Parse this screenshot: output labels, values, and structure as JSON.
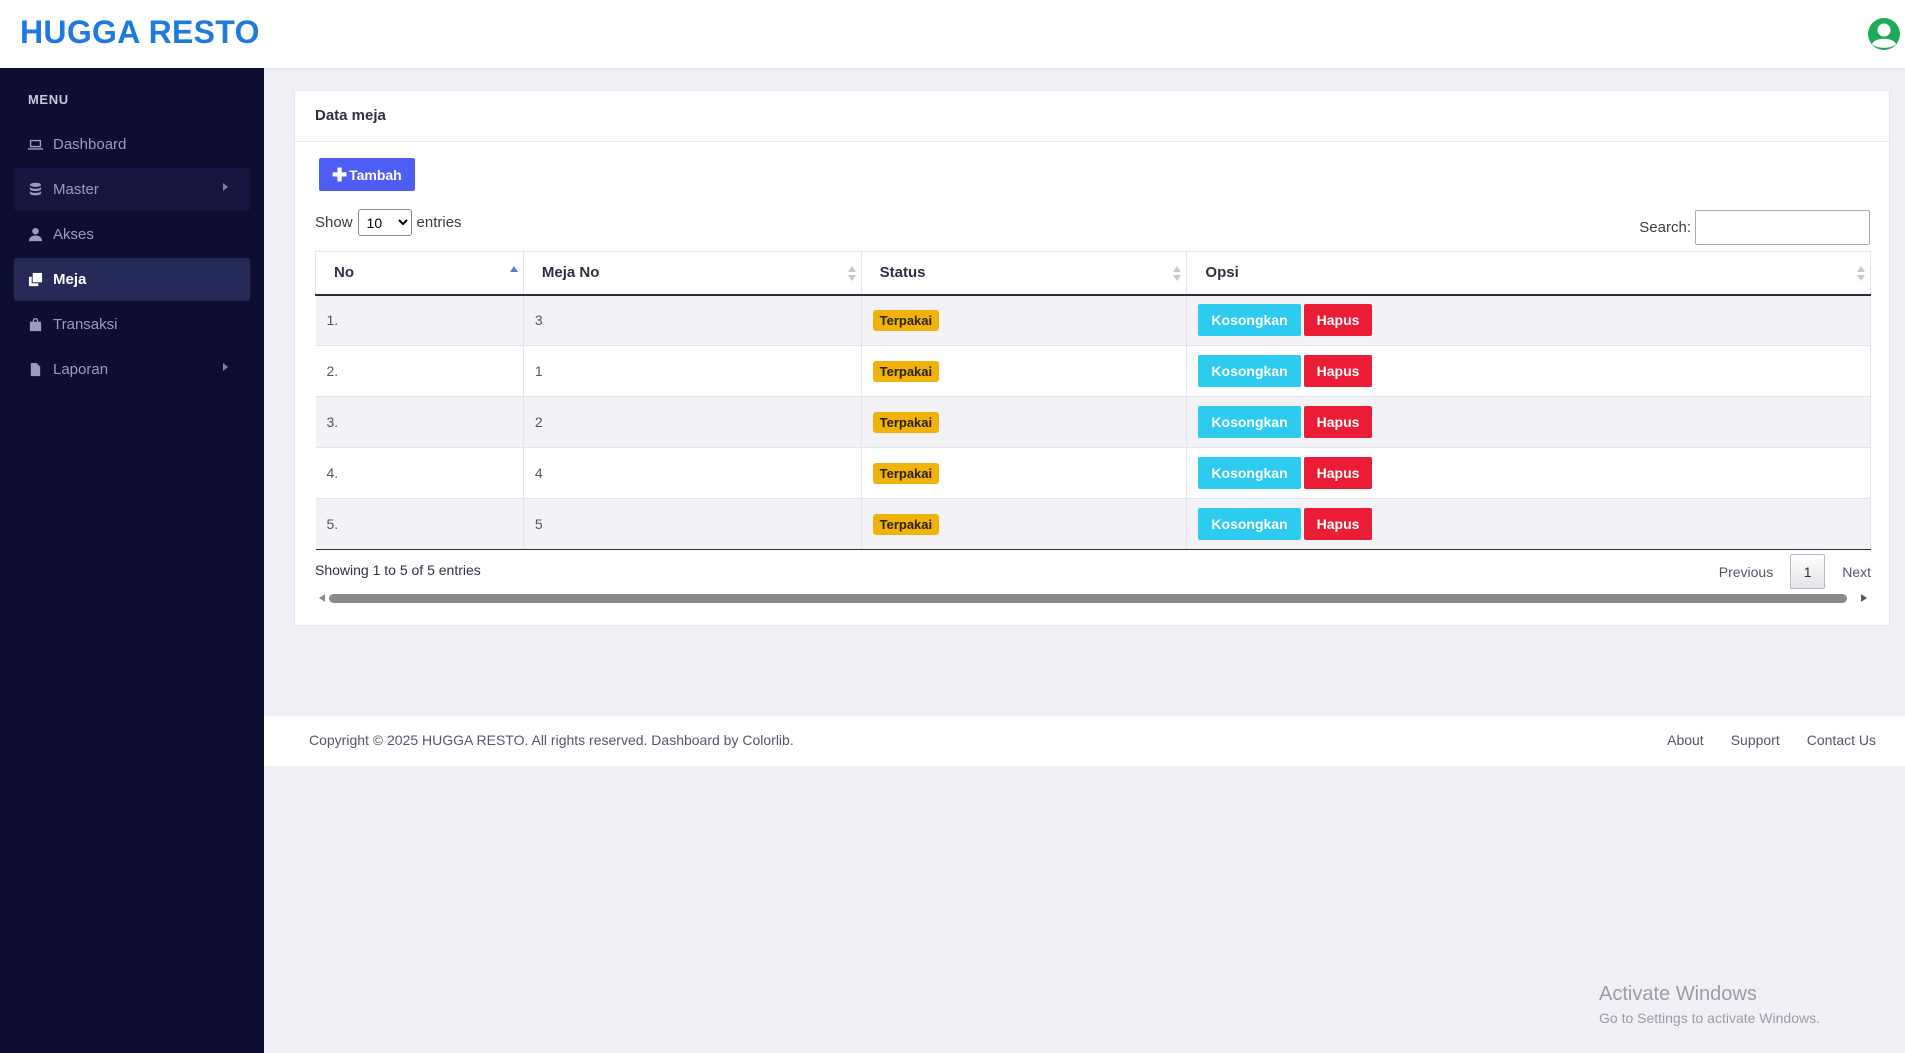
{
  "header": {
    "brand": "HUGGA RESTO"
  },
  "sidebar": {
    "heading": "MENU",
    "items": [
      {
        "label": "Dashboard",
        "icon": "laptop-icon"
      },
      {
        "label": "Master",
        "icon": "database-icon"
      },
      {
        "label": "Akses",
        "icon": "user-icon"
      },
      {
        "label": "Meja",
        "icon": "clone-icon"
      },
      {
        "label": "Transaksi",
        "icon": "shopping-bag-icon"
      },
      {
        "label": "Laporan",
        "icon": "file-icon"
      }
    ]
  },
  "card": {
    "title": "Data meja",
    "add_button": "Tambah",
    "show_label": "Show",
    "entries_label": "entries",
    "page_length": "10",
    "search_label": "Search:",
    "search_value": "",
    "columns": [
      "No",
      "Meja No",
      "Status",
      "Opsi"
    ],
    "rows": [
      {
        "no": "1.",
        "meja": "3",
        "status": "Terpakai"
      },
      {
        "no": "2.",
        "meja": "1",
        "status": "Terpakai"
      },
      {
        "no": "3.",
        "meja": "2",
        "status": "Terpakai"
      },
      {
        "no": "4.",
        "meja": "4",
        "status": "Terpakai"
      },
      {
        "no": "5.",
        "meja": "5",
        "status": "Terpakai"
      }
    ],
    "action_empty": "Kosongkan",
    "action_delete": "Hapus",
    "info": "Showing 1 to 5 of 5 entries",
    "pagination": {
      "previous": "Previous",
      "current": "1",
      "next": "Next"
    }
  },
  "footer": {
    "copyright": "Copyright © 2025 HUGGA RESTO. All rights reserved. Dashboard by Colorlib.",
    "links": [
      "About",
      "Support",
      "Contact Us"
    ]
  },
  "watermark": {
    "title": "Activate Windows",
    "subtitle": "Go to Settings to activate Windows."
  },
  "colors": {
    "brand": "#1f7ae0",
    "primary": "#4e5ef5",
    "info": "#2ccbef",
    "danger": "#eb1c35",
    "warning": "#f1b30b",
    "sidebar": "#0e0e33"
  }
}
